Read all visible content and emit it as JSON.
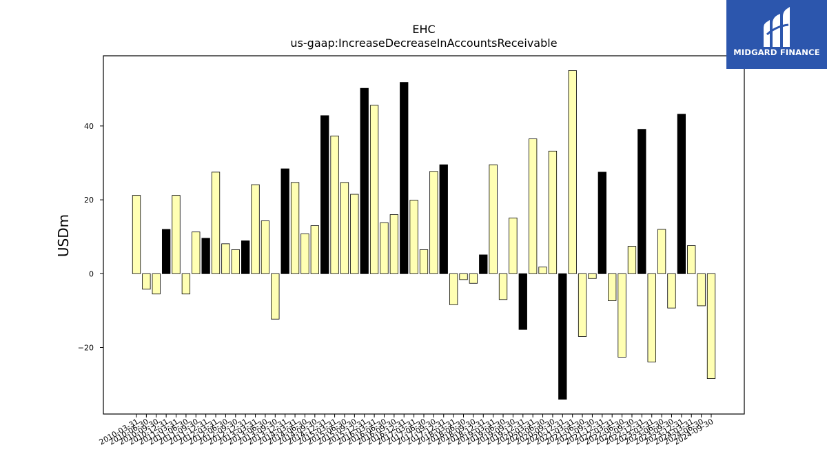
{
  "chart_data": {
    "type": "bar",
    "title": "EHC",
    "subtitle": "us-gaap:IncreaseDecreaseInAccountsReceivable",
    "xlabel": "",
    "ylabel": "USDm",
    "ylim": [
      -38,
      59
    ],
    "yticks": [
      -20,
      0,
      20,
      40
    ],
    "grid": false,
    "colors": {
      "quarter": "#ffffb3",
      "annual": "#000000",
      "edge": "#000000"
    },
    "categories": [
      "2010-03-31",
      "2010-06-30",
      "2010-09-30",
      "2010-12-31",
      "2011-03-31",
      "2011-06-30",
      "2011-09-30",
      "2011-12-31",
      "2012-03-31",
      "2012-06-30",
      "2012-09-30",
      "2012-12-31",
      "2013-03-31",
      "2013-06-30",
      "2013-09-30",
      "2013-12-31",
      "2014-03-31",
      "2014-06-30",
      "2014-09-30",
      "2014-12-31",
      "2015-03-31",
      "2015-06-30",
      "2015-09-30",
      "2015-12-31",
      "2016-03-31",
      "2016-06-30",
      "2016-09-30",
      "2016-12-31",
      "2017-03-31",
      "2017-06-30",
      "2017-09-30",
      "2017-12-31",
      "2018-03-31",
      "2018-06-30",
      "2018-09-30",
      "2018-12-31",
      "2019-03-31",
      "2019-06-30",
      "2019-09-30",
      "2019-12-31",
      "2020-03-31",
      "2020-06-30",
      "2020-09-30",
      "2020-12-31",
      "2021-03-31",
      "2021-06-30",
      "2021-09-30",
      "2021-12-31",
      "2022-03-31",
      "2022-06-30",
      "2022-09-30",
      "2022-12-31",
      "2023-03-31",
      "2023-06-30",
      "2023-09-30",
      "2023-12-31",
      "2024-03-31",
      "2024-06-30",
      "2024-09-30"
    ],
    "values": [
      21.2,
      -4.2,
      -5.5,
      12.0,
      21.2,
      -5.5,
      11.3,
      9.6,
      27.5,
      8.1,
      6.5,
      8.9,
      24.1,
      14.3,
      -12.3,
      28.4,
      24.7,
      10.8,
      13.0,
      42.8,
      37.3,
      24.7,
      21.5,
      50.2,
      45.6,
      13.8,
      16.0,
      51.8,
      19.9,
      6.5,
      27.7,
      29.5,
      -8.4,
      -1.6,
      -2.6,
      5.1,
      29.5,
      -7.0,
      15.1,
      -15.1,
      36.5,
      1.8,
      33.2,
      -34.0,
      55.0,
      -17.0,
      -1.3,
      27.5,
      -7.3,
      -22.6,
      7.4,
      39.1,
      -23.9,
      12.0,
      -9.3,
      43.2,
      7.6,
      -8.7,
      -28.4
    ],
    "annual": [
      false,
      false,
      false,
      true,
      false,
      false,
      false,
      true,
      false,
      false,
      false,
      true,
      false,
      false,
      false,
      true,
      false,
      false,
      false,
      true,
      false,
      false,
      false,
      true,
      false,
      false,
      false,
      true,
      false,
      false,
      false,
      true,
      false,
      false,
      false,
      true,
      false,
      false,
      false,
      true,
      false,
      false,
      false,
      true,
      false,
      false,
      false,
      true,
      false,
      false,
      false,
      true,
      false,
      false,
      false,
      true,
      false,
      false,
      false
    ]
  },
  "logo": {
    "text": "MIDGARD FINANCE"
  }
}
